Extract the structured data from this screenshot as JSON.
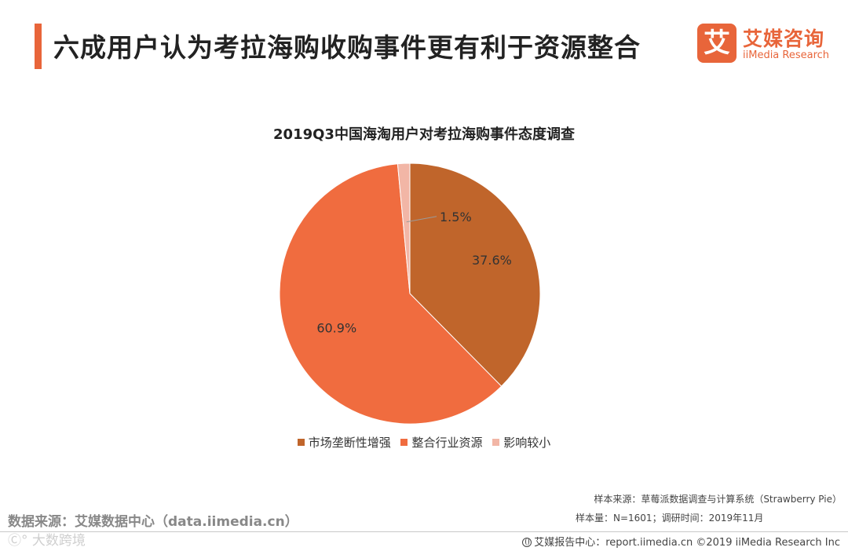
{
  "header": {
    "title": "六成用户认为考拉海购收购事件更有利于资源整合",
    "accent_color": "#e8653a"
  },
  "brand": {
    "logo_char": "艾",
    "name": "艾媒咨询",
    "sub": "iiMedia Research"
  },
  "chart_data": {
    "type": "pie",
    "title": "2019Q3中国海淘用户对考拉海购事件态度调查",
    "slices": [
      {
        "label": "市场垄断性增强",
        "value": 37.6,
        "display": "37.6%",
        "color": "#c0652b"
      },
      {
        "label": "整合行业资源",
        "value": 60.9,
        "display": "60.9%",
        "color": "#f06c3f"
      },
      {
        "label": "影响较小",
        "value": 1.5,
        "display": "1.5%",
        "color": "#f2b6a6"
      }
    ],
    "start_angle_deg": 0,
    "direction": "clockwise",
    "legend_position": "bottom"
  },
  "footer": {
    "source": "数据来源：艾媒数据中心（data.iimedia.cn）",
    "sample_source": "样本来源：草莓派数据调查与计算系统（Strawberry Pie）",
    "sample_size": "样本量：N=1601；调研时间：2019年11月",
    "report_center": "艾媒报告中心：report.iimedia.cn ©2019 iiMedia Research Inc",
    "watermark": "Ⓒ° 大数跨境"
  }
}
